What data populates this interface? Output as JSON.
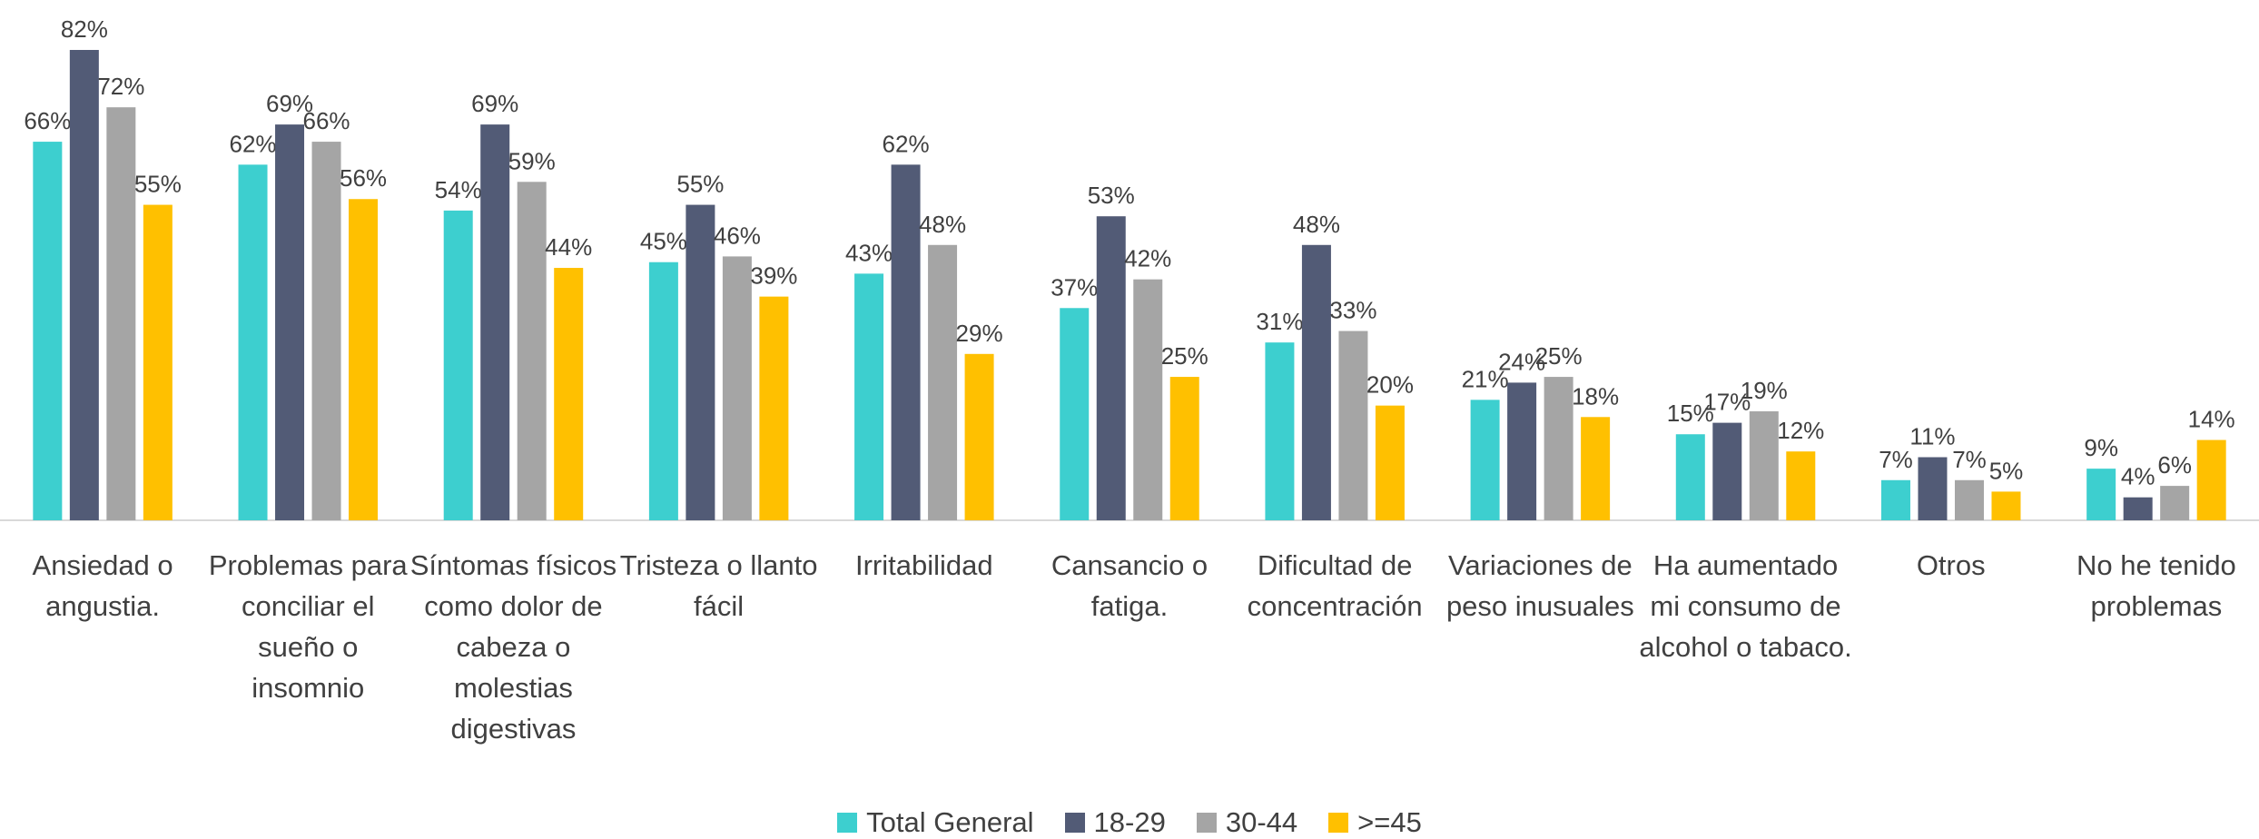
{
  "chart_data": {
    "type": "bar",
    "categories": [
      "Ansiedad o angustia.",
      "Problemas para conciliar el sueño o insomnio",
      "Síntomas físicos como dolor de cabeza o molestias digestivas",
      "Tristeza o llanto fácil",
      "Irritabilidad",
      "Cansancio o fatiga.",
      "Dificultad de concentración",
      "Variaciones de peso inusuales",
      "Ha aumentado mi consumo de alcohol o tabaco.",
      "Otros",
      "No he tenido problemas"
    ],
    "series": [
      {
        "name": "Total General",
        "color": "#3dcfcf",
        "values": [
          66,
          62,
          54,
          45,
          43,
          37,
          31,
          21,
          15,
          7,
          9
        ],
        "value_labels": [
          "66%",
          "62%",
          "54%",
          "45%",
          "43%",
          "37%",
          "31%",
          "21%",
          "15%",
          "7%",
          "9%"
        ]
      },
      {
        "name": "18-29",
        "color": "#525b76",
        "values": [
          82,
          69,
          69,
          55,
          62,
          53,
          48,
          24,
          17,
          11,
          4
        ],
        "value_labels": [
          "82%",
          "69%",
          "69%",
          "55%",
          "62%",
          "53%",
          "48%",
          "24%",
          "17%",
          "11%",
          "4%"
        ]
      },
      {
        "name": "30-44",
        "color": "#a5a5a5",
        "values": [
          72,
          66,
          59,
          46,
          48,
          42,
          33,
          25,
          19,
          7,
          6
        ],
        "value_labels": [
          "72%",
          "66%",
          "59%",
          "46%",
          "48%",
          "42%",
          "33%",
          "25%",
          "19%",
          "7%",
          "6%"
        ]
      },
      {
        "name": ">=45",
        "color": "#ffc000",
        "values": [
          55,
          56,
          44,
          39,
          29,
          25,
          20,
          18,
          12,
          5,
          14
        ],
        "value_labels": [
          "55%",
          "56%",
          "44%",
          "39%",
          "29%",
          "25%",
          "20%",
          "18%",
          "12%",
          "5%",
          "14%"
        ]
      }
    ],
    "legend": "bottom"
  }
}
